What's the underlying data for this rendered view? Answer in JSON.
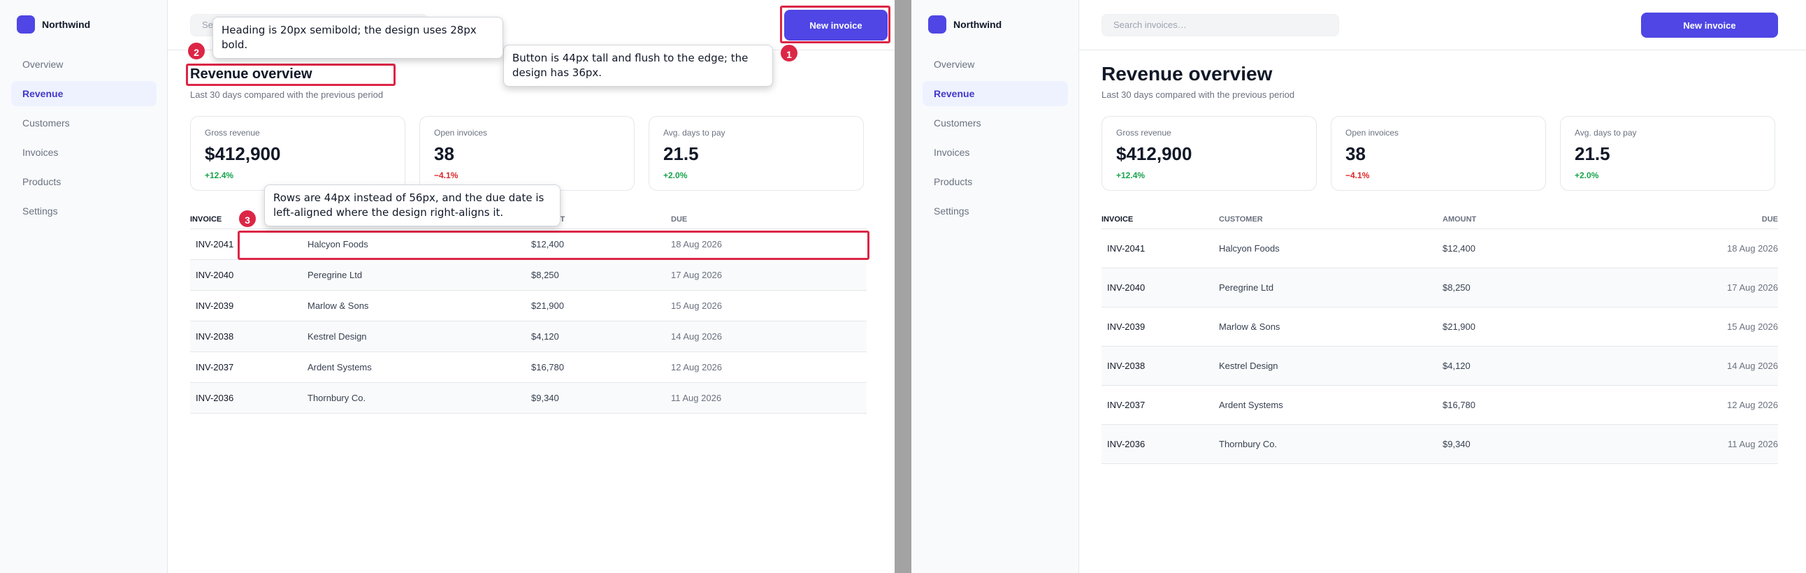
{
  "brand": {
    "name": "Northwind"
  },
  "nav": [
    {
      "label": "Overview"
    },
    {
      "label": "Revenue"
    },
    {
      "label": "Customers"
    },
    {
      "label": "Invoices"
    },
    {
      "label": "Products"
    },
    {
      "label": "Settings"
    }
  ],
  "search": {
    "placeholder": "Search invoices…"
  },
  "toolbar": {
    "new_invoice_label": "New invoice"
  },
  "page": {
    "title": "Revenue overview",
    "subtitle": "Last 30 days compared with the previous period"
  },
  "stats": [
    {
      "label": "Gross revenue",
      "value": "$412,900",
      "delta": "+12.4%",
      "trend": "up"
    },
    {
      "label": "Open invoices",
      "value": "38",
      "delta": "−4.1%",
      "trend": "down"
    },
    {
      "label": "Avg. days to pay",
      "value": "21.5",
      "delta": "+2.0%",
      "trend": "up"
    }
  ],
  "table": {
    "headers": [
      "INVOICE",
      "CUSTOMER",
      "AMOUNT",
      "DUE"
    ],
    "rows": [
      [
        "INV-2041",
        "Halcyon Foods",
        "$12,400",
        "18 Aug 2026"
      ],
      [
        "INV-2040",
        "Peregrine Ltd",
        "$8,250",
        "17 Aug 2026"
      ],
      [
        "INV-2039",
        "Marlow & Sons",
        "$21,900",
        "15 Aug 2026"
      ],
      [
        "INV-2038",
        "Kestrel Design",
        "$4,120",
        "14 Aug 2026"
      ],
      [
        "INV-2037",
        "Ardent Systems",
        "$16,780",
        "12 Aug 2026"
      ],
      [
        "INV-2036",
        "Thornbury Co.",
        "$9,340",
        "11 Aug 2026"
      ]
    ]
  },
  "annotations": [
    {
      "number": "1",
      "text": "Button is 44px tall and flush to the edge; the design has 36px."
    },
    {
      "number": "2",
      "text": "Heading is 20px semibold; the design uses 28px bold."
    },
    {
      "number": "3",
      "text": "Rows are 44px instead of 56px, and the due date is left-aligned where the design right-aligns it."
    }
  ],
  "colors": {
    "accent": "#4f46e5",
    "annotation": "#dc2646",
    "positive": "#16a34a",
    "negative": "#dc2626"
  }
}
